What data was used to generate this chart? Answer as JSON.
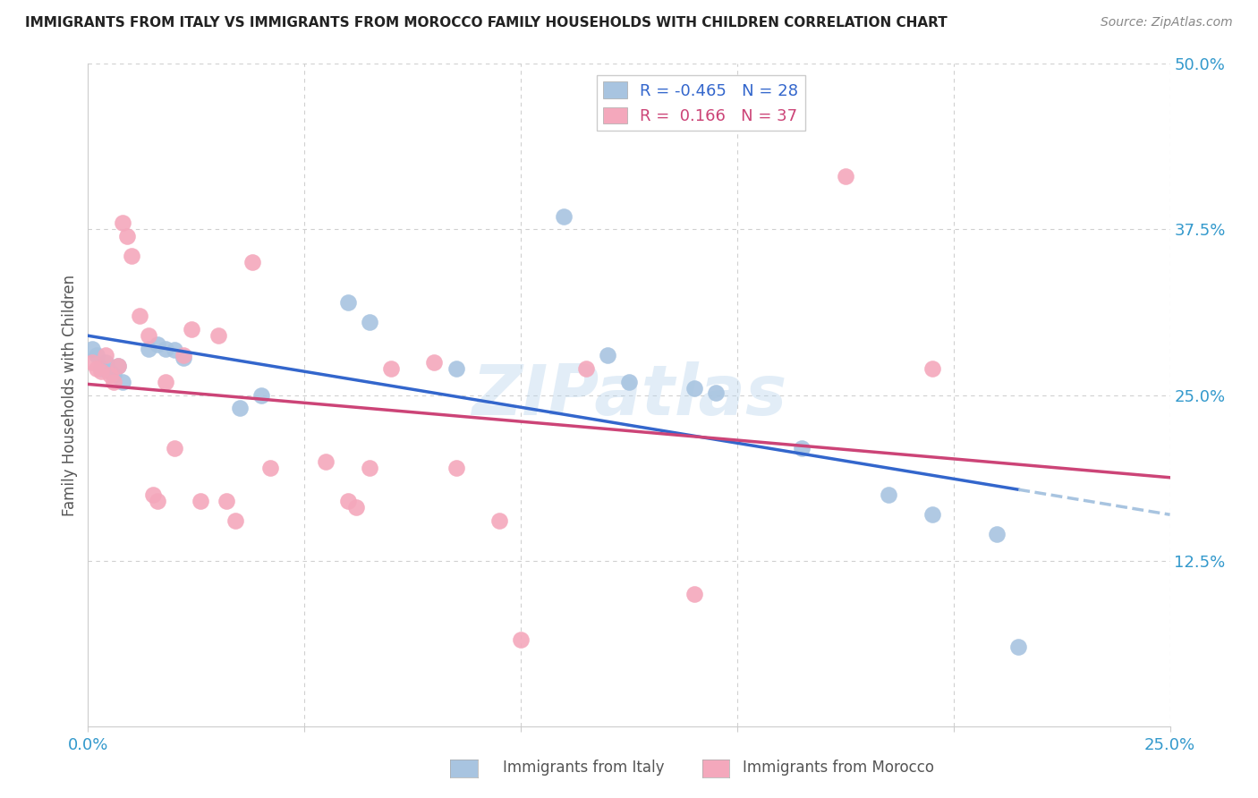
{
  "title": "IMMIGRANTS FROM ITALY VS IMMIGRANTS FROM MOROCCO FAMILY HOUSEHOLDS WITH CHILDREN CORRELATION CHART",
  "source": "Source: ZipAtlas.com",
  "xlabel_italy": "Immigrants from Italy",
  "xlabel_morocco": "Immigrants from Morocco",
  "ylabel": "Family Households with Children",
  "xlim": [
    0.0,
    0.25
  ],
  "ylim": [
    0.0,
    0.5
  ],
  "r_italy": -0.465,
  "n_italy": 28,
  "r_morocco": 0.166,
  "n_morocco": 37,
  "color_italy": "#a8c4e0",
  "color_morocco": "#f4a8bc",
  "line_italy": "#3366cc",
  "line_morocco": "#cc4477",
  "italy_x": [
    0.001,
    0.002,
    0.003,
    0.004,
    0.005,
    0.006,
    0.007,
    0.008,
    0.014,
    0.016,
    0.018,
    0.02,
    0.022,
    0.035,
    0.04,
    0.06,
    0.065,
    0.085,
    0.11,
    0.12,
    0.125,
    0.14,
    0.145,
    0.165,
    0.185,
    0.195,
    0.21,
    0.215
  ],
  "italy_y": [
    0.285,
    0.28,
    0.27,
    0.275,
    0.268,
    0.265,
    0.272,
    0.26,
    0.285,
    0.288,
    0.285,
    0.284,
    0.278,
    0.24,
    0.25,
    0.32,
    0.305,
    0.27,
    0.385,
    0.28,
    0.26,
    0.255,
    0.252,
    0.21,
    0.175,
    0.16,
    0.145,
    0.06
  ],
  "morocco_x": [
    0.001,
    0.002,
    0.003,
    0.004,
    0.005,
    0.006,
    0.007,
    0.008,
    0.009,
    0.01,
    0.012,
    0.014,
    0.015,
    0.016,
    0.018,
    0.02,
    0.022,
    0.024,
    0.026,
    0.03,
    0.032,
    0.034,
    0.038,
    0.042,
    0.055,
    0.06,
    0.062,
    0.065,
    0.07,
    0.08,
    0.085,
    0.095,
    0.1,
    0.115,
    0.14,
    0.175,
    0.195
  ],
  "morocco_y": [
    0.275,
    0.27,
    0.268,
    0.28,
    0.265,
    0.26,
    0.272,
    0.38,
    0.37,
    0.355,
    0.31,
    0.295,
    0.175,
    0.17,
    0.26,
    0.21,
    0.28,
    0.3,
    0.17,
    0.295,
    0.17,
    0.155,
    0.35,
    0.195,
    0.2,
    0.17,
    0.165,
    0.195,
    0.27,
    0.275,
    0.195,
    0.155,
    0.065,
    0.27,
    0.1,
    0.415,
    0.27
  ],
  "watermark": "ZIPatlas",
  "background_color": "#ffffff",
  "grid_color": "#d0d0d0"
}
